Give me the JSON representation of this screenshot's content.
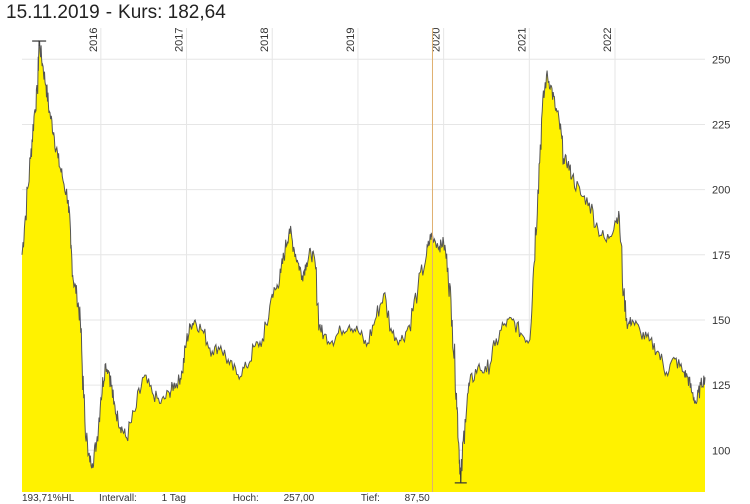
{
  "header": {
    "date": "15.11.2019",
    "separator": "-",
    "kurs_label": "Kurs:",
    "kurs_value": "182,64"
  },
  "footer": {
    "performance": "193,71%HL",
    "interval_label": "Intervall:",
    "interval_value": "1 Tag",
    "high_label": "Hoch:",
    "high_value": "257,00",
    "low_label": "Tief:",
    "low_value": "87,50"
  },
  "colors": {
    "area_fill": "#fff200",
    "line": "#555555",
    "grid": "#e6e6e6",
    "cursor": "#e0b070"
  },
  "chart_data": {
    "type": "area",
    "title": "",
    "xlabel": "",
    "ylabel": "",
    "ylim": [
      84,
      262
    ],
    "xlim": [
      2015.08,
      2023.05
    ],
    "grid": true,
    "y_ticks": [
      100,
      125,
      150,
      175,
      200,
      225,
      250
    ],
    "y_tick_labels": [
      "100",
      "125",
      "150",
      "175",
      "200",
      "225",
      "250"
    ],
    "x_ticks": [
      2016,
      2017,
      2018,
      2019,
      2020,
      2021,
      2022
    ],
    "x_tick_labels": [
      "2016",
      "2017",
      "2018",
      "2019",
      "2020",
      "2021",
      "2022"
    ],
    "cursor_x": 2019.87,
    "high_marker": {
      "x": 2015.28,
      "y": 257.0
    },
    "low_marker": {
      "x": 2020.2,
      "y": 87.5
    },
    "series": [
      {
        "x": [
          2015.08,
          2015.12,
          2015.18,
          2015.22,
          2015.26,
          2015.28,
          2015.32,
          2015.36,
          2015.4,
          2015.45,
          2015.5,
          2015.55,
          2015.62,
          2015.65,
          2015.68,
          2015.72,
          2015.76,
          2015.8,
          2015.85,
          2015.9,
          2015.95,
          2016.0,
          2016.05,
          2016.1,
          2016.15,
          2016.2,
          2016.25,
          2016.3,
          2016.4,
          2016.5,
          2016.6,
          2016.7,
          2016.8,
          2016.85,
          2016.9,
          2016.95,
          2017.0,
          2017.05,
          2017.1,
          2017.2,
          2017.3,
          2017.4,
          2017.5,
          2017.6,
          2017.7,
          2017.8,
          2017.9,
          2018.0,
          2018.05,
          2018.1,
          2018.15,
          2018.2,
          2018.25,
          2018.3,
          2018.35,
          2018.4,
          2018.45,
          2018.5,
          2018.55,
          2018.6,
          2018.7,
          2018.8,
          2018.9,
          2019.0,
          2019.1,
          2019.2,
          2019.3,
          2019.4,
          2019.5,
          2019.6,
          2019.7,
          2019.8,
          2019.85,
          2019.87,
          2019.95,
          2020.0,
          2020.05,
          2020.1,
          2020.15,
          2020.18,
          2020.2,
          2020.25,
          2020.3,
          2020.4,
          2020.5,
          2020.6,
          2020.7,
          2020.8,
          2020.9,
          2021.0,
          2021.05,
          2021.1,
          2021.15,
          2021.2,
          2021.25,
          2021.3,
          2021.35,
          2021.4,
          2021.45,
          2021.5,
          2021.6,
          2021.7,
          2021.8,
          2021.9,
          2022.0,
          2022.05,
          2022.1,
          2022.15,
          2022.2,
          2022.3,
          2022.4,
          2022.5,
          2022.6,
          2022.7,
          2022.8,
          2022.85,
          2022.9,
          2022.95,
          2023.0,
          2023.05
        ],
        "values": [
          175,
          190,
          212,
          228,
          238,
          257,
          248,
          240,
          230,
          222,
          212,
          205,
          196,
          178,
          165,
          160,
          150,
          120,
          98,
          95,
          103,
          120,
          133,
          130,
          118,
          112,
          108,
          105,
          115,
          128,
          122,
          118,
          122,
          125,
          126,
          130,
          142,
          148,
          150,
          145,
          138,
          140,
          133,
          129,
          132,
          140,
          142,
          160,
          162,
          168,
          177,
          185,
          178,
          172,
          167,
          172,
          176,
          172,
          148,
          144,
          142,
          146,
          148,
          146,
          140,
          150,
          160,
          145,
          142,
          148,
          162,
          175,
          182,
          182.64,
          178,
          180,
          170,
          150,
          122,
          100,
          87.5,
          112,
          125,
          132,
          130,
          140,
          148,
          150,
          145,
          142,
          170,
          200,
          230,
          244,
          240,
          232,
          226,
          212,
          210,
          205,
          198,
          195,
          185,
          180,
          188,
          190,
          160,
          148,
          150,
          145,
          142,
          138,
          130,
          135,
          130,
          128,
          122,
          118,
          125,
          128
        ]
      }
    ]
  }
}
